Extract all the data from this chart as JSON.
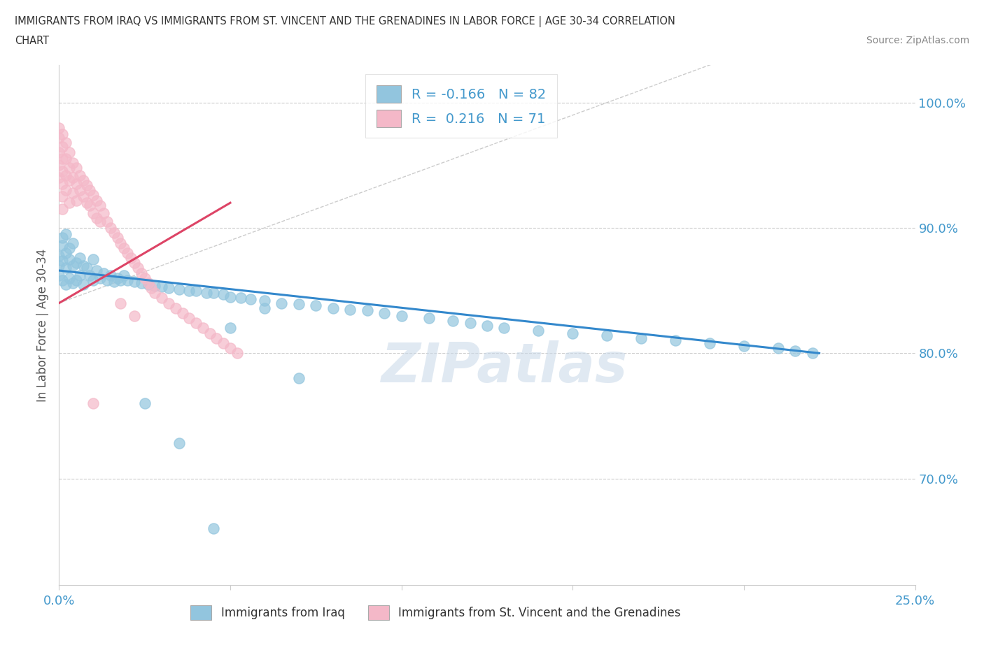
{
  "title_line1": "IMMIGRANTS FROM IRAQ VS IMMIGRANTS FROM ST. VINCENT AND THE GRENADINES IN LABOR FORCE | AGE 30-34 CORRELATION",
  "title_line2": "CHART",
  "source_text": "Source: ZipAtlas.com",
  "ylabel": "In Labor Force | Age 30-34",
  "xlim": [
    0.0,
    0.25
  ],
  "ylim": [
    0.615,
    1.03
  ],
  "y_ticks_right": [
    0.7,
    0.8,
    0.9,
    1.0
  ],
  "y_tick_labels_right": [
    "70.0%",
    "80.0%",
    "90.0%",
    "100.0%"
  ],
  "watermark": "ZIPatlas",
  "color_iraq": "#92C5DE",
  "color_svg": "#F4B8C8",
  "trendline_color_iraq": "#3388CC",
  "trendline_color_svg": "#DD4466",
  "iraq_trend_x0": 0.0,
  "iraq_trend_y0": 0.866,
  "iraq_trend_x1": 0.222,
  "iraq_trend_y1": 0.8,
  "svg_trend_x0": 0.0,
  "svg_trend_y0": 0.84,
  "svg_trend_x1": 0.05,
  "svg_trend_y1": 0.92,
  "iraq_x": [
    0.0,
    0.0,
    0.0,
    0.001,
    0.001,
    0.001,
    0.001,
    0.002,
    0.002,
    0.002,
    0.002,
    0.003,
    0.003,
    0.003,
    0.004,
    0.004,
    0.004,
    0.005,
    0.005,
    0.006,
    0.006,
    0.007,
    0.007,
    0.008,
    0.009,
    0.01,
    0.01,
    0.011,
    0.012,
    0.013,
    0.014,
    0.015,
    0.016,
    0.017,
    0.018,
    0.019,
    0.02,
    0.022,
    0.024,
    0.026,
    0.028,
    0.03,
    0.032,
    0.035,
    0.038,
    0.04,
    0.043,
    0.045,
    0.048,
    0.05,
    0.053,
    0.056,
    0.06,
    0.065,
    0.07,
    0.075,
    0.08,
    0.085,
    0.09,
    0.095,
    0.1,
    0.108,
    0.115,
    0.12,
    0.125,
    0.13,
    0.14,
    0.15,
    0.16,
    0.17,
    0.18,
    0.19,
    0.2,
    0.21,
    0.215,
    0.22,
    0.06,
    0.035,
    0.025,
    0.05,
    0.07,
    0.045
  ],
  "iraq_y": [
    0.87,
    0.878,
    0.862,
    0.886,
    0.874,
    0.858,
    0.892,
    0.88,
    0.868,
    0.855,
    0.895,
    0.875,
    0.86,
    0.884,
    0.87,
    0.856,
    0.888,
    0.872,
    0.858,
    0.876,
    0.862,
    0.87,
    0.855,
    0.868,
    0.862,
    0.875,
    0.858,
    0.866,
    0.86,
    0.864,
    0.858,
    0.862,
    0.857,
    0.86,
    0.858,
    0.862,
    0.858,
    0.857,
    0.856,
    0.855,
    0.854,
    0.853,
    0.852,
    0.851,
    0.85,
    0.85,
    0.848,
    0.848,
    0.847,
    0.845,
    0.844,
    0.843,
    0.842,
    0.84,
    0.839,
    0.838,
    0.836,
    0.835,
    0.834,
    0.832,
    0.83,
    0.828,
    0.826,
    0.824,
    0.822,
    0.82,
    0.818,
    0.816,
    0.814,
    0.812,
    0.81,
    0.808,
    0.806,
    0.804,
    0.802,
    0.8,
    0.836,
    0.728,
    0.76,
    0.82,
    0.78,
    0.66
  ],
  "svg_x": [
    0.0,
    0.0,
    0.0,
    0.0,
    0.0,
    0.001,
    0.001,
    0.001,
    0.001,
    0.001,
    0.001,
    0.001,
    0.002,
    0.002,
    0.002,
    0.002,
    0.003,
    0.003,
    0.003,
    0.003,
    0.004,
    0.004,
    0.004,
    0.005,
    0.005,
    0.005,
    0.006,
    0.006,
    0.007,
    0.007,
    0.008,
    0.008,
    0.009,
    0.009,
    0.01,
    0.01,
    0.011,
    0.011,
    0.012,
    0.012,
    0.013,
    0.014,
    0.015,
    0.016,
    0.017,
    0.018,
    0.019,
    0.02,
    0.021,
    0.022,
    0.023,
    0.024,
    0.025,
    0.026,
    0.027,
    0.028,
    0.03,
    0.032,
    0.034,
    0.036,
    0.038,
    0.04,
    0.042,
    0.044,
    0.046,
    0.048,
    0.05,
    0.052,
    0.018,
    0.022,
    0.01
  ],
  "svg_y": [
    0.98,
    0.972,
    0.96,
    0.95,
    0.94,
    0.975,
    0.965,
    0.955,
    0.945,
    0.935,
    0.925,
    0.915,
    0.968,
    0.955,
    0.942,
    0.93,
    0.96,
    0.948,
    0.938,
    0.92,
    0.952,
    0.94,
    0.928,
    0.948,
    0.935,
    0.922,
    0.942,
    0.93,
    0.938,
    0.925,
    0.934,
    0.92,
    0.93,
    0.918,
    0.926,
    0.912,
    0.922,
    0.908,
    0.918,
    0.905,
    0.912,
    0.905,
    0.9,
    0.896,
    0.892,
    0.888,
    0.884,
    0.88,
    0.876,
    0.872,
    0.868,
    0.864,
    0.86,
    0.856,
    0.852,
    0.848,
    0.844,
    0.84,
    0.836,
    0.832,
    0.828,
    0.824,
    0.82,
    0.816,
    0.812,
    0.808,
    0.804,
    0.8,
    0.84,
    0.83,
    0.76
  ]
}
